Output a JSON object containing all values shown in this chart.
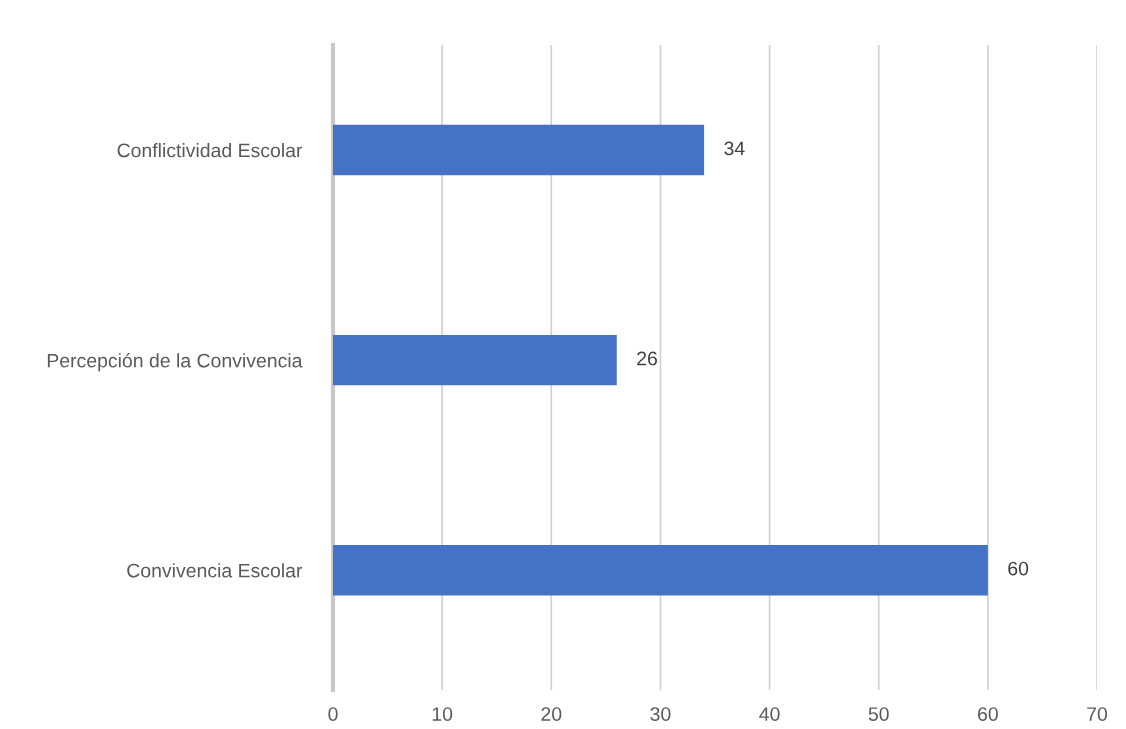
{
  "chart_data": {
    "type": "bar",
    "orientation": "horizontal",
    "categories": [
      "Conflictividad Escolar",
      "Percepción de la Convivencia",
      "Convivencia Escolar"
    ],
    "values": [
      34,
      26,
      60
    ],
    "color": "#4472c4",
    "xlim": [
      0,
      70
    ],
    "xticks": [
      0,
      10,
      20,
      30,
      40,
      50,
      60,
      70
    ],
    "grid": "x",
    "data_labels": true
  }
}
